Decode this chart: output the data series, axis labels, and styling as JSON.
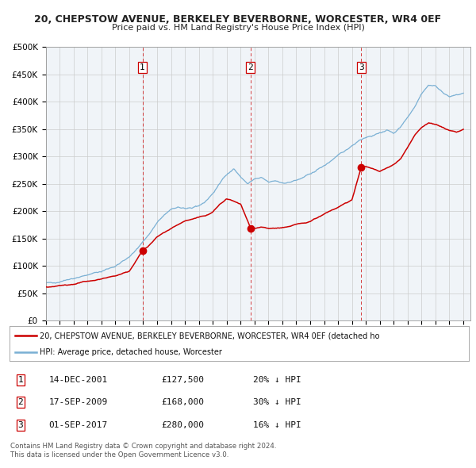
{
  "title": "20, CHEPSTOW AVENUE, BERKELEY BEVERBORNE, WORCESTER, WR4 0EF",
  "subtitle": "Price paid vs. HM Land Registry's House Price Index (HPI)",
  "ylim": [
    0,
    500000
  ],
  "yticks": [
    0,
    50000,
    100000,
    150000,
    200000,
    250000,
    300000,
    350000,
    400000,
    450000,
    500000
  ],
  "ytick_labels": [
    "£0",
    "£50K",
    "£100K",
    "£150K",
    "£200K",
    "£250K",
    "£300K",
    "£350K",
    "£400K",
    "£450K",
    "£500K"
  ],
  "xlim_start": 1995.0,
  "xlim_end": 2025.5,
  "red_color": "#cc0000",
  "blue_color": "#7ab0d4",
  "sale_dates": [
    2001.95,
    2009.71,
    2017.67
  ],
  "sale_prices": [
    127500,
    168000,
    280000
  ],
  "sale_labels": [
    "1",
    "2",
    "3"
  ],
  "vline_dates": [
    2001.95,
    2009.71,
    2017.67
  ],
  "legend_line1": "20, CHEPSTOW AVENUE, BERKELEY BEVERBORNE, WORCESTER, WR4 0EF (detached ho",
  "legend_line2": "HPI: Average price, detached house, Worcester",
  "table_data": [
    {
      "num": "1",
      "date": "14-DEC-2001",
      "price": "£127,500",
      "change": "20% ↓ HPI"
    },
    {
      "num": "2",
      "date": "17-SEP-2009",
      "price": "£168,000",
      "change": "30% ↓ HPI"
    },
    {
      "num": "3",
      "date": "01-SEP-2017",
      "price": "£280,000",
      "change": "16% ↓ HPI"
    }
  ],
  "footer1": "Contains HM Land Registry data © Crown copyright and database right 2024.",
  "footer2": "This data is licensed under the Open Government Licence v3.0.",
  "hpi_anchors": [
    [
      1995.0,
      67000
    ],
    [
      1996.0,
      72000
    ],
    [
      1997.0,
      78000
    ],
    [
      1998.0,
      83000
    ],
    [
      1999.0,
      90000
    ],
    [
      2000.0,
      100000
    ],
    [
      2001.0,
      115000
    ],
    [
      2002.0,
      145000
    ],
    [
      2002.5,
      160000
    ],
    [
      2003.0,
      178000
    ],
    [
      2003.5,
      192000
    ],
    [
      2004.0,
      202000
    ],
    [
      2004.5,
      208000
    ],
    [
      2005.0,
      205000
    ],
    [
      2005.5,
      203000
    ],
    [
      2006.0,
      210000
    ],
    [
      2006.5,
      218000
    ],
    [
      2007.0,
      232000
    ],
    [
      2007.5,
      250000
    ],
    [
      2008.0,
      268000
    ],
    [
      2008.5,
      278000
    ],
    [
      2009.0,
      262000
    ],
    [
      2009.5,
      250000
    ],
    [
      2010.0,
      258000
    ],
    [
      2010.5,
      260000
    ],
    [
      2011.0,
      252000
    ],
    [
      2011.5,
      255000
    ],
    [
      2012.0,
      252000
    ],
    [
      2012.5,
      253000
    ],
    [
      2013.0,
      256000
    ],
    [
      2013.5,
      260000
    ],
    [
      2014.0,
      268000
    ],
    [
      2014.5,
      275000
    ],
    [
      2015.0,
      283000
    ],
    [
      2015.5,
      292000
    ],
    [
      2016.0,
      300000
    ],
    [
      2016.5,
      310000
    ],
    [
      2017.0,
      320000
    ],
    [
      2017.5,
      330000
    ],
    [
      2018.0,
      335000
    ],
    [
      2018.5,
      338000
    ],
    [
      2019.0,
      342000
    ],
    [
      2019.5,
      348000
    ],
    [
      2020.0,
      342000
    ],
    [
      2020.5,
      355000
    ],
    [
      2021.0,
      372000
    ],
    [
      2021.5,
      392000
    ],
    [
      2022.0,
      415000
    ],
    [
      2022.5,
      430000
    ],
    [
      2023.0,
      428000
    ],
    [
      2023.5,
      418000
    ],
    [
      2024.0,
      408000
    ],
    [
      2024.5,
      412000
    ],
    [
      2025.0,
      415000
    ]
  ],
  "red_anchors": [
    [
      1995.0,
      60000
    ],
    [
      1996.0,
      63000
    ],
    [
      1997.0,
      67000
    ],
    [
      1998.0,
      72000
    ],
    [
      1999.0,
      76000
    ],
    [
      2000.0,
      82000
    ],
    [
      2001.0,
      90000
    ],
    [
      2001.95,
      127500
    ],
    [
      2002.5,
      140000
    ],
    [
      2003.0,
      152000
    ],
    [
      2003.5,
      160000
    ],
    [
      2004.0,
      168000
    ],
    [
      2004.5,
      175000
    ],
    [
      2005.0,
      182000
    ],
    [
      2005.5,
      185000
    ],
    [
      2006.0,
      188000
    ],
    [
      2006.5,
      192000
    ],
    [
      2007.0,
      198000
    ],
    [
      2007.5,
      212000
    ],
    [
      2008.0,
      222000
    ],
    [
      2008.5,
      218000
    ],
    [
      2009.0,
      212000
    ],
    [
      2009.71,
      168000
    ],
    [
      2010.0,
      168000
    ],
    [
      2010.5,
      170000
    ],
    [
      2011.0,
      168000
    ],
    [
      2011.5,
      169000
    ],
    [
      2012.0,
      170000
    ],
    [
      2012.5,
      172000
    ],
    [
      2013.0,
      175000
    ],
    [
      2013.5,
      178000
    ],
    [
      2014.0,
      182000
    ],
    [
      2014.5,
      188000
    ],
    [
      2015.0,
      194000
    ],
    [
      2015.5,
      200000
    ],
    [
      2016.0,
      206000
    ],
    [
      2016.5,
      214000
    ],
    [
      2017.0,
      220000
    ],
    [
      2017.67,
      280000
    ],
    [
      2018.0,
      282000
    ],
    [
      2018.5,
      278000
    ],
    [
      2019.0,
      272000
    ],
    [
      2019.5,
      278000
    ],
    [
      2020.0,
      285000
    ],
    [
      2020.5,
      295000
    ],
    [
      2021.0,
      315000
    ],
    [
      2021.5,
      338000
    ],
    [
      2022.0,
      352000
    ],
    [
      2022.5,
      362000
    ],
    [
      2023.0,
      358000
    ],
    [
      2023.5,
      352000
    ],
    [
      2024.0,
      348000
    ],
    [
      2024.5,
      345000
    ],
    [
      2025.0,
      348000
    ]
  ]
}
